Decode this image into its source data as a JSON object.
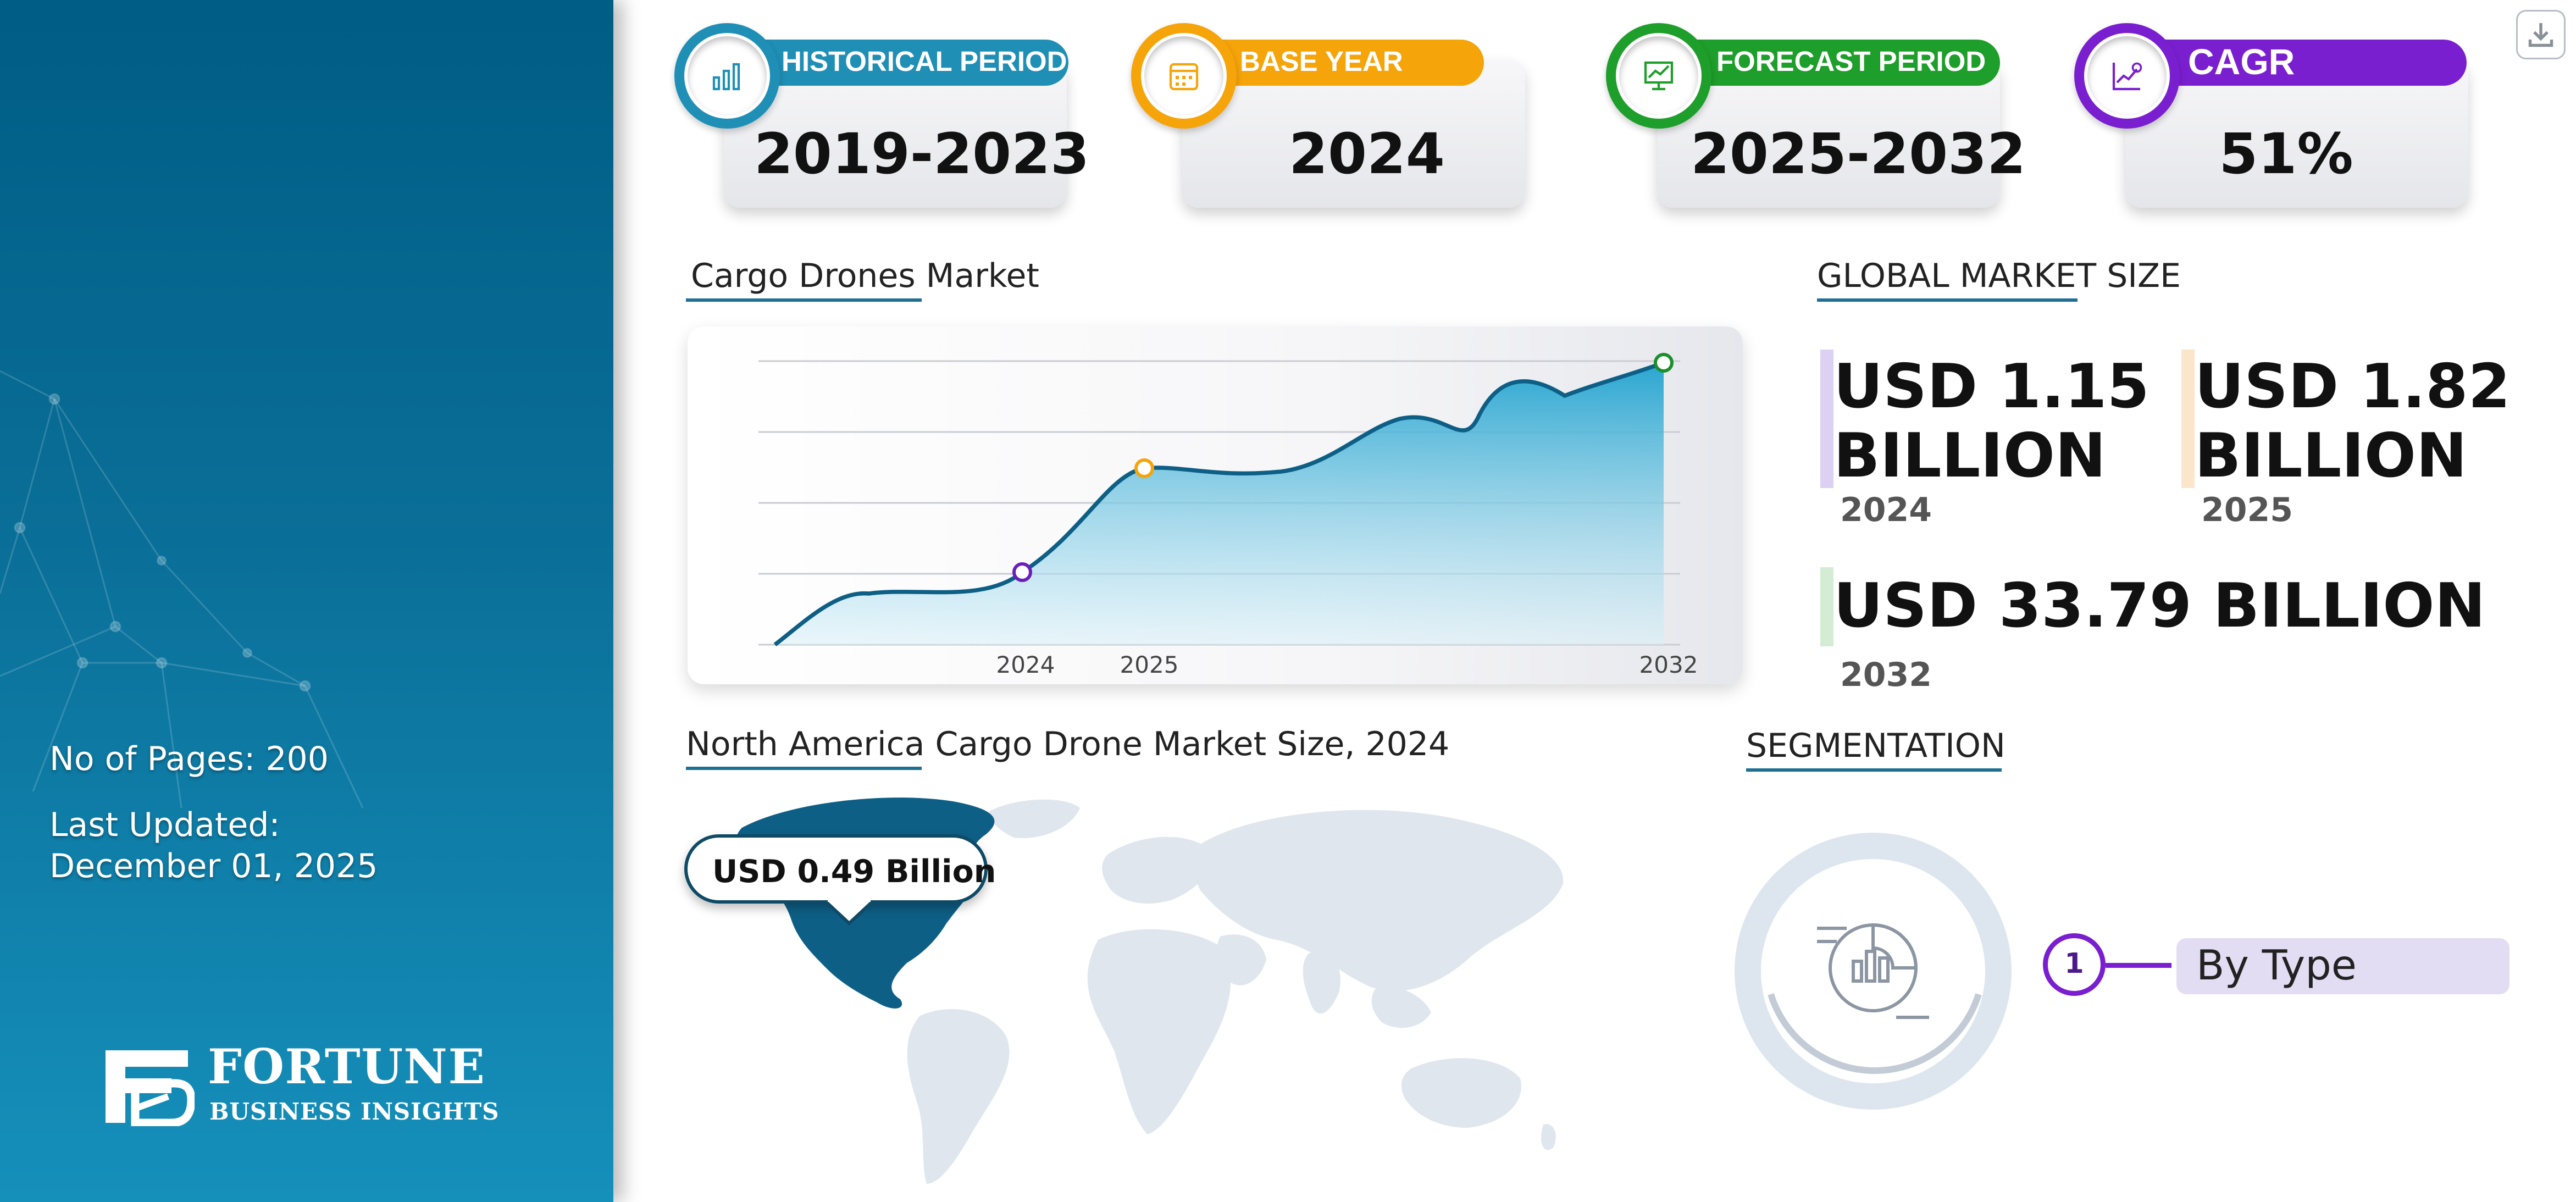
{
  "sidebar": {
    "pages": "No of Pages: 200",
    "updated_label": "Last Updated:",
    "updated_date": "December 01, 2025",
    "logo_name": "FORTUNE",
    "logo_sub": "BUSINESS INSIGHTS"
  },
  "kpis": [
    {
      "label": "HISTORICAL PERIOD",
      "value": "2019-2023",
      "color": "#1f8fb6",
      "icon": "bar-chart-icon"
    },
    {
      "label": "BASE YEAR",
      "value": "2024",
      "color": "#f5a40a",
      "icon": "calendar-icon"
    },
    {
      "label": "FORECAST PERIOD",
      "value": "2025-2032",
      "color": "#1e9e2a",
      "icon": "forecast-icon"
    },
    {
      "label": "CAGR",
      "value": "51%",
      "color": "#7a1fd0",
      "icon": "growth-chart-icon"
    }
  ],
  "chart_section": {
    "title": "Cargo Drones Market"
  },
  "chart_data": {
    "type": "area",
    "title": "Cargo Drones Market",
    "x_ticks": [
      "2024",
      "2025",
      "2032"
    ],
    "points": [
      {
        "year": "2024",
        "color": "#6a1fb8"
      },
      {
        "year": "2025",
        "color": "#f5a40a"
      },
      {
        "year": "2032",
        "color": "#1a8f2a"
      }
    ],
    "grid": true
  },
  "market_size": {
    "title": "GLOBAL MARKET SIZE",
    "items": [
      {
        "value": "USD 1.15 BILLION",
        "line1": "USD 1.15",
        "line2": "BILLION",
        "year": "2024",
        "bar_color": "#d9cdf1"
      },
      {
        "value": "USD 1.82 BILLION",
        "line1": "USD 1.82",
        "line2": "BILLION",
        "year": "2025",
        "bar_color": "#fbe8d0"
      },
      {
        "value": "USD 33.79 BILLION",
        "line1": "USD 33.79 BILLION",
        "year": "2032",
        "bar_color": "#d5edd5"
      }
    ]
  },
  "map_section": {
    "title": "North America Cargo Drone Market Size, 2024",
    "callout": "USD 0.49 Billion"
  },
  "segmentation": {
    "title": "SEGMENTATION",
    "items": [
      {
        "number": "1",
        "label": "By Type"
      }
    ]
  }
}
